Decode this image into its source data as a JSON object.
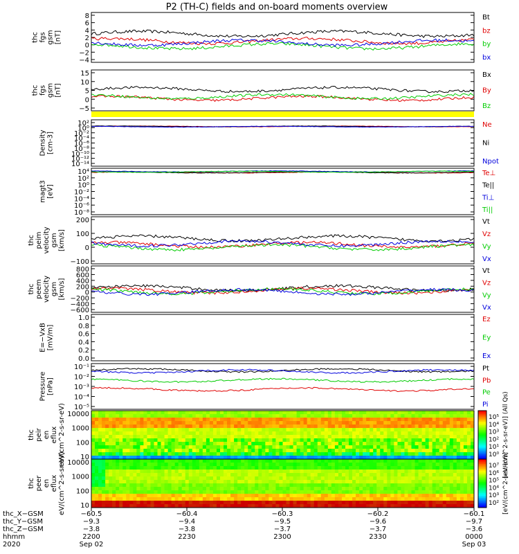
{
  "title": "P2 (TH-C) fields and on-board moments overview",
  "colors": {
    "black": "#000000",
    "red": "#e00000",
    "green": "#00cc00",
    "blue": "#0000dd",
    "yellow": "#ffff00"
  },
  "chart_data": [
    {
      "type": "line",
      "ylabel": "thc fgs gsm [nT]",
      "yticks": [
        "8",
        "6",
        "4",
        "2",
        "0",
        "−2",
        "−4"
      ],
      "ylim": [
        -5,
        9
      ],
      "series": [
        {
          "name": "Bt",
          "color": "black",
          "y0": 3
        },
        {
          "name": "bz",
          "color": "red",
          "y0": 1
        },
        {
          "name": "by",
          "color": "green",
          "y0": -0.5
        },
        {
          "name": "bx",
          "color": "blue",
          "y0": 0.5
        }
      ]
    },
    {
      "type": "line",
      "ylabel": "thc fgs gsm [nT]",
      "yticks": [
        "15",
        "10",
        "5",
        "0",
        "−5"
      ],
      "ylim": [
        -7,
        16
      ],
      "series": [
        {
          "name": "Bx",
          "color": "black",
          "y0": 5
        },
        {
          "name": "By",
          "color": "red",
          "y0": 0
        },
        {
          "name": "Bz",
          "color": "green",
          "y0": 1
        }
      ]
    },
    {
      "type": "line",
      "ylabel": "Density [cm-3]",
      "yticks": [
        "10²",
        "10⁰",
        "10⁻²",
        "10⁻⁴",
        "10⁻⁶",
        "10⁻⁸",
        "10⁻¹⁰",
        "10⁻¹²",
        "10⁻¹⁴"
      ],
      "log": true,
      "series": [
        {
          "name": "Ne",
          "color": "red",
          "y0": 0.5
        },
        {
          "name": "Ni",
          "color": "black",
          "y0": 0.5
        },
        {
          "name": "Npot",
          "color": "blue",
          "y0": 0.4
        }
      ]
    },
    {
      "type": "line",
      "ylabel": "magt3 [eV]",
      "yticks": [
        "10⁴",
        "10²",
        "10⁰",
        "10⁻²",
        "10⁻⁴",
        "10⁻⁶",
        "10⁻⁸"
      ],
      "log": true,
      "series": [
        {
          "name": "Te⊥",
          "color": "red",
          "y0": 3.6
        },
        {
          "name": "Te||",
          "color": "black",
          "y0": 3.6
        },
        {
          "name": "Ti⊥",
          "color": "blue",
          "y0": 3.9
        },
        {
          "name": "Ti||",
          "color": "green",
          "y0": 3.8
        }
      ]
    },
    {
      "type": "line",
      "ylabel": "thc peim velocity gsm [km/s]",
      "yticks": [
        "200",
        "100",
        "0",
        "−100"
      ],
      "ylim": [
        -150,
        220
      ],
      "series": [
        {
          "name": "Vt",
          "color": "black",
          "y0": 50
        },
        {
          "name": "Vz",
          "color": "red",
          "y0": 0
        },
        {
          "name": "Vy",
          "color": "green",
          "y0": -20
        },
        {
          "name": "Vx",
          "color": "blue",
          "y0": 10
        }
      ]
    },
    {
      "type": "line",
      "ylabel": "thc peem velocity gsm [km/s]",
      "yticks": [
        "800",
        "600",
        "400",
        "200",
        "0",
        "−200",
        "−400",
        "−600"
      ],
      "ylim": [
        -700,
        800
      ],
      "series": [
        {
          "name": "Vt",
          "color": "black",
          "y0": 80
        },
        {
          "name": "Vz",
          "color": "red",
          "y0": 0
        },
        {
          "name": "Vy",
          "color": "green",
          "y0": -20
        },
        {
          "name": "Vx",
          "color": "blue",
          "y0": -40
        }
      ]
    },
    {
      "type": "line",
      "ylabel": "E=−VxB [mV/m]",
      "yticks": [
        "1.0",
        "0.8",
        "0.6",
        "0.4",
        "0.2",
        "0.0"
      ],
      "ylim": [
        0,
        1
      ],
      "series": [
        {
          "name": "Ez",
          "color": "red"
        },
        {
          "name": "Ey",
          "color": "green"
        },
        {
          "name": "Ex",
          "color": "blue"
        }
      ]
    },
    {
      "type": "line",
      "ylabel": "Pressure [nPa]",
      "yticks": [
        "10⁻¹",
        "10⁻²",
        "10⁻³",
        "10⁻⁴",
        "10⁻⁵"
      ],
      "log": true,
      "series": [
        {
          "name": "Pt",
          "color": "black",
          "y0": -1.4
        },
        {
          "name": "Pb",
          "color": "red",
          "y0": -3.3
        },
        {
          "name": "Pe",
          "color": "green",
          "y0": -2.4
        },
        {
          "name": "Pi",
          "color": "blue",
          "y0": -1.5
        }
      ]
    },
    {
      "type": "heatmap",
      "ylabel": "thc peir en eflux eV/(cm^2-s-sr-eV)",
      "yticks": [
        "10000",
        "1000",
        "100",
        "10"
      ],
      "log": true,
      "colorbar": {
        "label": "[eV/(cm^2-s-sr-eV)] (All Qs)",
        "ticks": [
          "10⁵",
          "10⁴",
          "10³",
          "10²",
          "10¹",
          "10⁰"
        ]
      }
    },
    {
      "type": "heatmap",
      "ylabel": "thc peer en eflux eV/(cm^2-s-sr-eV)",
      "yticks": [
        "10000",
        "1000",
        "100",
        "10"
      ],
      "log": true,
      "colorbar": {
        "label": "[eV/(cm^2-s-sr-eV)]",
        "ticks": [
          "10⁷",
          "10⁶",
          "10⁵",
          "10⁴",
          "10³",
          "10²"
        ]
      }
    }
  ],
  "xaxis": {
    "rows": [
      {
        "label": "thc_X−GSM",
        "values": [
          "−60.5",
          "−60.4",
          "−60.3",
          "−60.2",
          "−60.1"
        ]
      },
      {
        "label": "thc_Y−GSM",
        "values": [
          "−9.3",
          "−9.4",
          "−9.5",
          "−9.6",
          "−9.7"
        ]
      },
      {
        "label": "thc_Z−GSM",
        "values": [
          "−3.8",
          "−3.8",
          "−3.7",
          "−3.7",
          "−3.6"
        ]
      },
      {
        "label": "hhmm",
        "values": [
          "2200",
          "2230",
          "2300",
          "2330",
          "0000"
        ]
      },
      {
        "label": "2020",
        "values": [
          "Sep 02",
          "",
          "",
          "",
          "Sep 03"
        ]
      }
    ]
  }
}
